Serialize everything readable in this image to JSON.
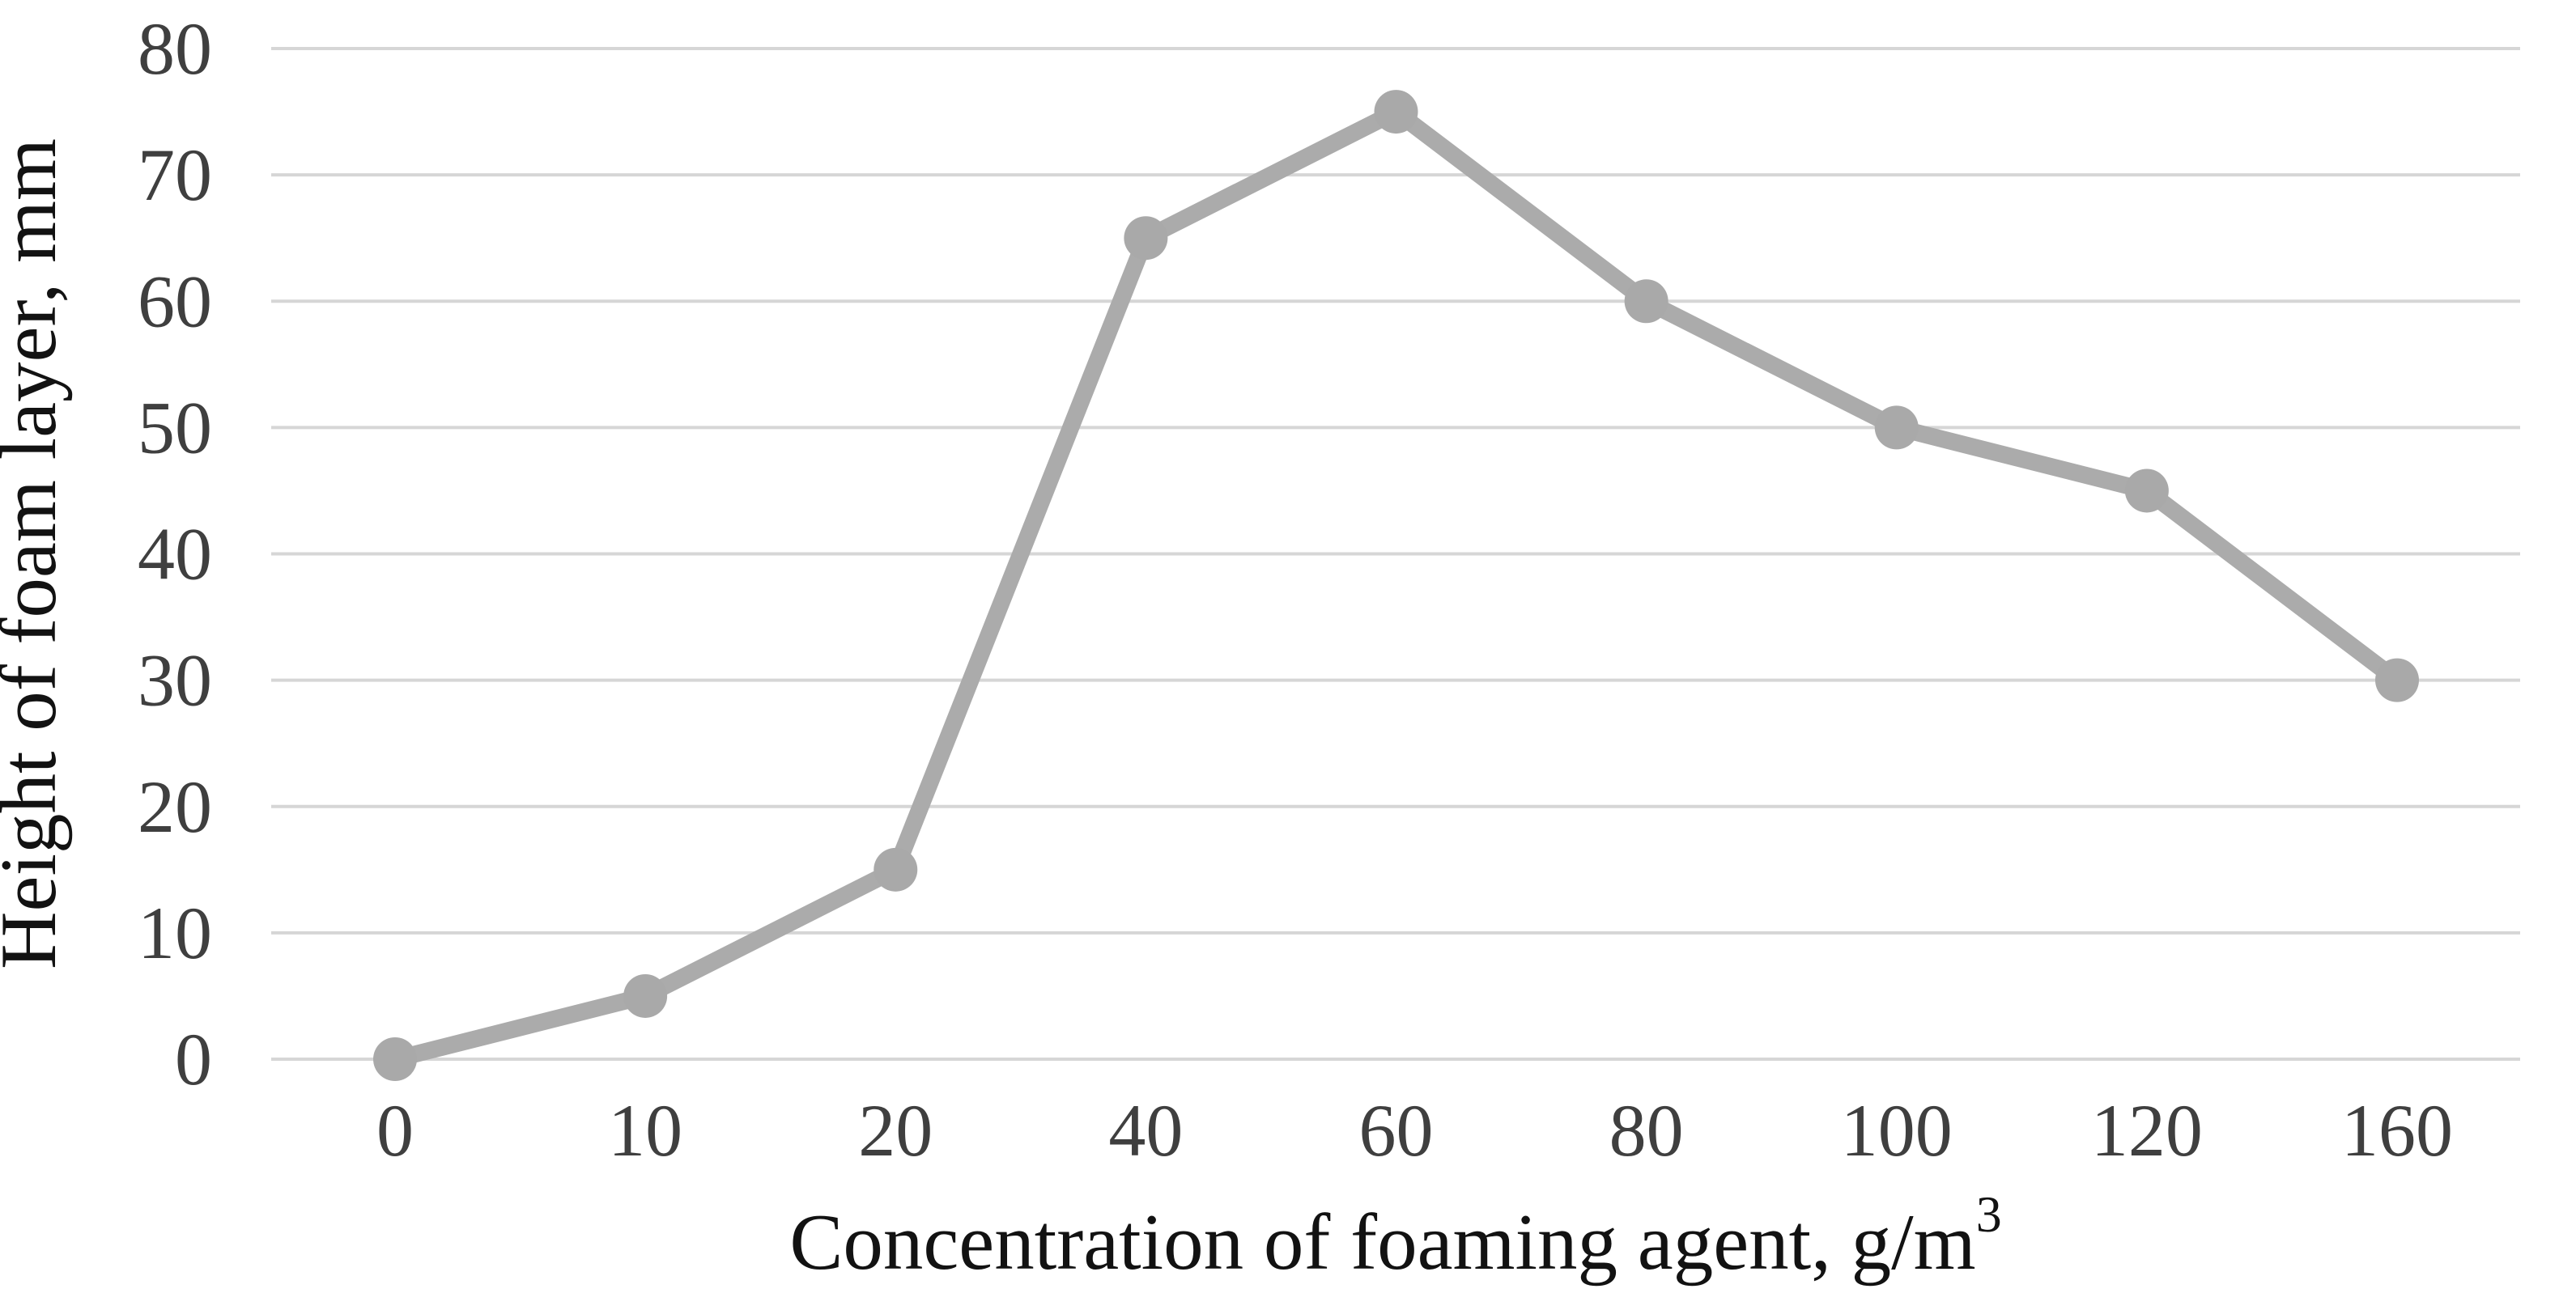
{
  "chart_data": {
    "type": "line",
    "title": "",
    "categories": [
      "0",
      "10",
      "20",
      "40",
      "60",
      "80",
      "100",
      "120",
      "160"
    ],
    "series": [
      {
        "name": "Height of foam layer",
        "values": [
          0,
          5,
          15,
          65,
          75,
          60,
          50,
          45,
          30
        ]
      }
    ],
    "xlabel": "Concentration of foaming agent, g/m³",
    "xlabel_base": "Concentration of foaming agent, g/m",
    "xlabel_superscript": "3",
    "ylabel": "Height of foam layer, mm",
    "ylim": [
      0,
      80
    ],
    "ytick_step": 10,
    "yticks": [
      "0",
      "10",
      "20",
      "30",
      "40",
      "50",
      "60",
      "70",
      "80"
    ],
    "grid": "horizontal-only",
    "legend_position": "none",
    "colors": {
      "line": "#ABABAB",
      "marker": "#A9A9A9",
      "gridline": "#D6D6D6",
      "tick_label": "#3F3F3F",
      "axis_title": "#121212",
      "background": "#FFFFFF"
    }
  }
}
